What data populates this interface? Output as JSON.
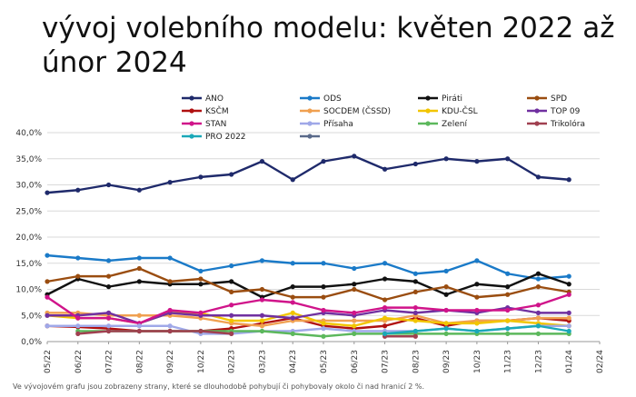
{
  "title": "vývoj volebního modelu: květen 2022 až únor 2024",
  "footnote": "Ve vývojovém grafu jsou zobrazeny strany, které se dlouhodobě pohybují či pohybovaly okolo či nad hranicí 2 %.",
  "chart_data": {
    "type": "line",
    "title": "vývoj volebního modelu: květen 2022 až únor 2024",
    "xlabel": "",
    "ylabel": "",
    "ylim": [
      0,
      40
    ],
    "grid": true,
    "legend_position": "top",
    "x": [
      "05/22",
      "06/22",
      "07/22",
      "08/22",
      "09/22",
      "10/22",
      "02/23",
      "03/23",
      "04/23",
      "05/23",
      "06/23",
      "07/23",
      "08/23",
      "09/23",
      "10/23",
      "11/23",
      "12/23",
      "01/24",
      "02/24"
    ],
    "y_ticks": [
      "0,0%",
      "5,0%",
      "10,0%",
      "15,0%",
      "20,0%",
      "25,0%",
      "30,0%",
      "35,0%",
      "40,0%"
    ],
    "series": [
      {
        "name": "ANO",
        "color": "#1f2a6b",
        "values": [
          28.5,
          29,
          30,
          29,
          30.5,
          31.5,
          32,
          34.5,
          31,
          34.5,
          35.5,
          33,
          34,
          35,
          34.5,
          35,
          31.5,
          31,
          null
        ]
      },
      {
        "name": "ODS",
        "color": "#1a7ac8",
        "values": [
          16.5,
          16,
          15.5,
          16,
          16,
          13.5,
          14.5,
          15.5,
          15,
          15,
          14,
          15,
          13,
          13.5,
          15.5,
          13,
          12,
          12.5,
          null
        ]
      },
      {
        "name": "Piráti",
        "color": "#111111",
        "values": [
          9,
          12,
          10.5,
          11.5,
          11,
          11,
          11.5,
          8.5,
          10.5,
          10.5,
          11,
          12,
          11.5,
          9,
          11,
          10.5,
          13,
          11,
          null
        ]
      },
      {
        "name": "SPD",
        "color": "#9a4d10",
        "values": [
          11.5,
          12.5,
          12.5,
          14,
          11.5,
          12,
          9.5,
          10,
          8.5,
          8.5,
          10,
          8,
          9.5,
          10.5,
          8.5,
          9,
          10.5,
          9.5,
          null
        ]
      },
      {
        "name": "KSČM",
        "color": "#b01010",
        "values": [
          3,
          2.8,
          2.5,
          2,
          2,
          2,
          2.5,
          3.5,
          4.5,
          3,
          2.5,
          3,
          4.5,
          3,
          4,
          4,
          4.5,
          4,
          null
        ]
      },
      {
        "name": "SOCDEM (ČSSD)",
        "color": "#f0a050",
        "values": [
          5.5,
          5.5,
          5,
          5,
          5,
          4.5,
          3.5,
          3,
          4,
          4,
          4,
          4,
          5,
          3.5,
          4,
          4,
          4.5,
          4.5,
          null
        ]
      },
      {
        "name": "KDU-ČSL",
        "color": "#f2c500",
        "values": [
          5,
          4.5,
          4.5,
          3.5,
          5.5,
          5.5,
          4,
          4,
          5.5,
          3.5,
          3,
          4.5,
          4,
          3.5,
          3.5,
          4,
          3.5,
          3,
          null
        ]
      },
      {
        "name": "TOP 09",
        "color": "#7030a0",
        "values": [
          5,
          5,
          5.5,
          3.5,
          5.5,
          5,
          5,
          5,
          4.5,
          5.5,
          5,
          6,
          5.5,
          6,
          5.5,
          6.5,
          5.5,
          5.5,
          null
        ]
      },
      {
        "name": "STAN",
        "color": "#d0148a",
        "values": [
          8.5,
          4.5,
          4.5,
          3.5,
          6,
          5.5,
          7,
          8,
          7.5,
          6,
          5.5,
          6.5,
          6.5,
          6,
          6,
          6,
          7,
          9,
          null
        ]
      },
      {
        "name": "Přísaha",
        "color": "#9fa8e8",
        "values": [
          3,
          3,
          3,
          3,
          3,
          1.5,
          1.5,
          2,
          2,
          2.5,
          2,
          2,
          2,
          2.5,
          2,
          2.5,
          3,
          3,
          null
        ]
      },
      {
        "name": "Zelení",
        "color": "#5cb85c",
        "values": [
          null,
          2,
          2,
          2,
          2,
          2,
          2,
          2,
          1.5,
          1,
          1.5,
          1.5,
          1.5,
          1.5,
          1.5,
          1.5,
          1.5,
          1.5,
          null
        ]
      },
      {
        "name": "Trikolóra",
        "color": "#a04050",
        "values": [
          null,
          1.5,
          2,
          2,
          2,
          2,
          1.5,
          null,
          null,
          null,
          null,
          1,
          1,
          null,
          null,
          null,
          null,
          null,
          null
        ]
      },
      {
        "name": "PRO 2022",
        "color": "#1aa8b8",
        "values": [
          null,
          null,
          null,
          null,
          null,
          null,
          null,
          null,
          null,
          null,
          null,
          1.5,
          2,
          2.5,
          2,
          2.5,
          3,
          2,
          null
        ]
      },
      {
        "name": "",
        "color": "#5a6a8a",
        "values": [
          null,
          null,
          null,
          null,
          null,
          null,
          null,
          null,
          null,
          null,
          null,
          null,
          null,
          null,
          null,
          null,
          null,
          null,
          null
        ]
      }
    ]
  }
}
